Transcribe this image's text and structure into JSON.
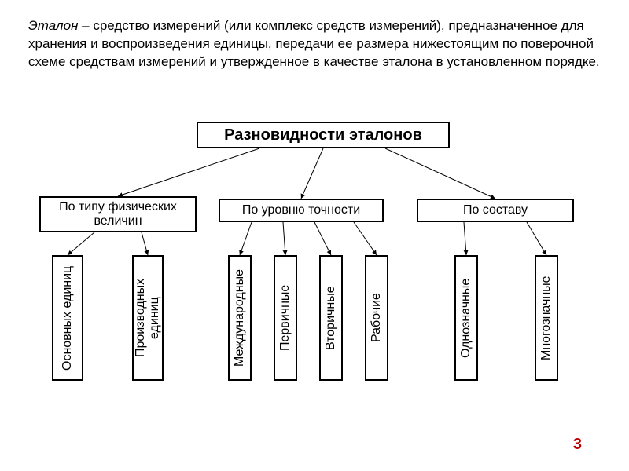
{
  "paragraph": {
    "term": "Эталон",
    "dash": "  –  ",
    "text": "средство измерений (или комплекс средств измерений), предназначенное для хранения и воспроизведения единицы, передачи ее размера нижестоящим по поверочной схеме средствам измерений и утвержденное в качестве эталона в установленном порядке."
  },
  "diagram": {
    "type": "tree",
    "root": "Разновидности эталонов",
    "categories": {
      "cat1": "По типу физических величин",
      "cat2": "По уровню точности",
      "cat3": "По составу"
    },
    "leaves": {
      "leaf1": "Основных единиц",
      "leaf2": "Производных единиц",
      "leaf3": "Международные",
      "leaf4": "Первичные",
      "leaf5": "Вторичные",
      "leaf6": "Рабочие",
      "leaf7": "Однозначные",
      "leaf8": "Многозначные"
    },
    "style": {
      "border_color": "#000000",
      "border_width": 2,
      "background": "#ffffff",
      "root_fontsize": 20,
      "root_fontweight": "bold",
      "cat_fontsize": 16,
      "leaf_fontsize": 16,
      "arrow_color": "#000000",
      "arrow_width": 1
    },
    "edges_root": [
      {
        "from": [
          330,
          34
        ],
        "to": [
          150,
          95
        ]
      },
      {
        "from": [
          411,
          34
        ],
        "to": [
          383,
          98
        ]
      },
      {
        "from": [
          490,
          34
        ],
        "to": [
          630,
          98
        ]
      }
    ],
    "edges_cat1": [
      {
        "from": [
          120,
          141
        ],
        "to": [
          86,
          170
        ]
      },
      {
        "from": [
          180,
          141
        ],
        "to": [
          188,
          170
        ]
      }
    ],
    "edges_cat2": [
      {
        "from": [
          320,
          128
        ],
        "to": [
          305,
          170
        ]
      },
      {
        "from": [
          360,
          128
        ],
        "to": [
          363,
          170
        ]
      },
      {
        "from": [
          400,
          128
        ],
        "to": [
          421,
          170
        ]
      },
      {
        "from": [
          450,
          128
        ],
        "to": [
          479,
          170
        ]
      }
    ],
    "edges_cat3": [
      {
        "from": [
          590,
          128
        ],
        "to": [
          593,
          170
        ]
      },
      {
        "from": [
          670,
          128
        ],
        "to": [
          695,
          170
        ]
      }
    ]
  },
  "page_number": "3",
  "colors": {
    "text": "#000000",
    "page_number": "#c00000",
    "background": "#ffffff"
  }
}
